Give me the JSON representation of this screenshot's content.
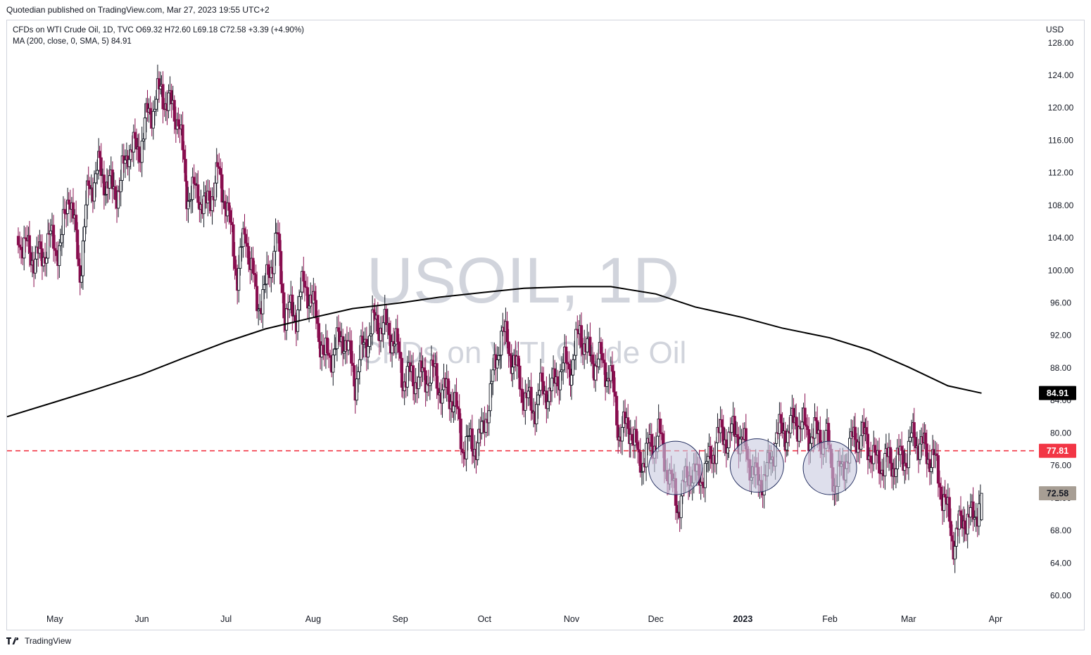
{
  "header": {
    "publisher": "Quotedian published on TradingView.com, Mar 27, 2023 19:55 UTC+2"
  },
  "legend": {
    "line1": "CFDs on WTI Crude Oil, 1D, TVC  O69.32  H72.60  L69.18  C72.58  +3.39 (+4.90%)",
    "line2": "MA (200, close, 0, SMA, 5)  84.91"
  },
  "currency": "USD",
  "watermark": {
    "symbol": "USOIL, 1D",
    "name": "CFDs on WTI Crude Oil"
  },
  "footer": {
    "brand": "TradingView",
    "logo_icon": "tradingview-logo-icon"
  },
  "colors": {
    "up": "#131722",
    "down": "#880e4f",
    "ma": "#000000",
    "support": "#f23645",
    "circle_fill": "#c8cadf",
    "circle_stroke": "#1f2a5c",
    "last_price_bg": "#a79e94"
  },
  "chart_data": {
    "type": "candlestick",
    "y_axis": {
      "min": 58,
      "max": 130,
      "ticks": [
        128,
        124,
        120,
        116,
        112,
        108,
        104,
        100,
        96,
        92,
        88,
        84,
        80,
        76,
        72,
        68,
        64,
        60
      ],
      "tick_labels": [
        "128.00",
        "124.00",
        "120.00",
        "116.00",
        "112.00",
        "108.00",
        "104.00",
        "100.00",
        "96.00",
        "92.00",
        "88.00",
        "84.00",
        "80.00",
        "76.00",
        "72.00",
        "68.00",
        "64.00",
        "60.00"
      ]
    },
    "x_axis": {
      "labels": [
        {
          "text": "May",
          "date": "2022-05-01",
          "bold": false
        },
        {
          "text": "Jun",
          "date": "2022-06-01",
          "bold": false
        },
        {
          "text": "Jul",
          "date": "2022-07-01",
          "bold": false
        },
        {
          "text": "Aug",
          "date": "2022-08-01",
          "bold": false
        },
        {
          "text": "Sep",
          "date": "2022-09-01",
          "bold": false
        },
        {
          "text": "Oct",
          "date": "2022-10-01",
          "bold": false
        },
        {
          "text": "Nov",
          "date": "2022-11-01",
          "bold": false
        },
        {
          "text": "Dec",
          "date": "2022-12-01",
          "bold": false
        },
        {
          "text": "2023",
          "date": "2023-01-01",
          "bold": true
        },
        {
          "text": "Feb",
          "date": "2023-02-01",
          "bold": false
        },
        {
          "text": "Mar",
          "date": "2023-03-01",
          "bold": false
        },
        {
          "text": "Apr",
          "date": "2023-04-01",
          "bold": false
        }
      ]
    },
    "closes": [
      {
        "d": "2022-04-18",
        "c": 104.2
      },
      {
        "d": "2022-04-22",
        "c": 102.1
      },
      {
        "d": "2022-04-26",
        "c": 101.3
      },
      {
        "d": "2022-04-29",
        "c": 103.8
      },
      {
        "d": "2022-05-03",
        "c": 102.5
      },
      {
        "d": "2022-05-06",
        "c": 110.2
      },
      {
        "d": "2022-05-10",
        "c": 99.8
      },
      {
        "d": "2022-05-13",
        "c": 110.1
      },
      {
        "d": "2022-05-17",
        "c": 112.4
      },
      {
        "d": "2022-05-20",
        "c": 110.3
      },
      {
        "d": "2022-05-24",
        "c": 109.8
      },
      {
        "d": "2022-05-27",
        "c": 115.0
      },
      {
        "d": "2022-05-31",
        "c": 114.7
      },
      {
        "d": "2022-06-03",
        "c": 118.9
      },
      {
        "d": "2022-06-08",
        "c": 122.1
      },
      {
        "d": "2022-06-10",
        "c": 120.7
      },
      {
        "d": "2022-06-14",
        "c": 118.9
      },
      {
        "d": "2022-06-17",
        "c": 109.6
      },
      {
        "d": "2022-06-21",
        "c": 109.5
      },
      {
        "d": "2022-06-24",
        "c": 107.6
      },
      {
        "d": "2022-06-28",
        "c": 111.8
      },
      {
        "d": "2022-07-01",
        "c": 108.4
      },
      {
        "d": "2022-07-05",
        "c": 99.5
      },
      {
        "d": "2022-07-08",
        "c": 104.8
      },
      {
        "d": "2022-07-12",
        "c": 95.8
      },
      {
        "d": "2022-07-15",
        "c": 97.6
      },
      {
        "d": "2022-07-19",
        "c": 104.2
      },
      {
        "d": "2022-07-22",
        "c": 94.7
      },
      {
        "d": "2022-07-26",
        "c": 94.9
      },
      {
        "d": "2022-07-29",
        "c": 98.6
      },
      {
        "d": "2022-08-02",
        "c": 94.4
      },
      {
        "d": "2022-08-05",
        "c": 89.0
      },
      {
        "d": "2022-08-09",
        "c": 90.5
      },
      {
        "d": "2022-08-12",
        "c": 92.1
      },
      {
        "d": "2022-08-16",
        "c": 86.5
      },
      {
        "d": "2022-08-19",
        "c": 90.8
      },
      {
        "d": "2022-08-23",
        "c": 93.7
      },
      {
        "d": "2022-08-26",
        "c": 93.1
      },
      {
        "d": "2022-08-30",
        "c": 91.6
      },
      {
        "d": "2022-09-02",
        "c": 86.9
      },
      {
        "d": "2022-09-06",
        "c": 86.9
      },
      {
        "d": "2022-09-09",
        "c": 86.8
      },
      {
        "d": "2022-09-13",
        "c": 87.3
      },
      {
        "d": "2022-09-16",
        "c": 85.1
      },
      {
        "d": "2022-09-20",
        "c": 84.4
      },
      {
        "d": "2022-09-23",
        "c": 78.7
      },
      {
        "d": "2022-09-27",
        "c": 78.5
      },
      {
        "d": "2022-09-30",
        "c": 79.5
      },
      {
        "d": "2022-10-04",
        "c": 86.5
      },
      {
        "d": "2022-10-07",
        "c": 92.6
      },
      {
        "d": "2022-10-11",
        "c": 89.4
      },
      {
        "d": "2022-10-14",
        "c": 85.6
      },
      {
        "d": "2022-10-18",
        "c": 82.8
      },
      {
        "d": "2022-10-21",
        "c": 85.1
      },
      {
        "d": "2022-10-25",
        "c": 85.3
      },
      {
        "d": "2022-10-28",
        "c": 87.9
      },
      {
        "d": "2022-11-01",
        "c": 88.4
      },
      {
        "d": "2022-11-04",
        "c": 92.6
      },
      {
        "d": "2022-11-08",
        "c": 88.9
      },
      {
        "d": "2022-11-11",
        "c": 88.9
      },
      {
        "d": "2022-11-15",
        "c": 86.9
      },
      {
        "d": "2022-11-18",
        "c": 80.1
      },
      {
        "d": "2022-11-22",
        "c": 80.9
      },
      {
        "d": "2022-11-25",
        "c": 76.3
      },
      {
        "d": "2022-11-29",
        "c": 78.2
      },
      {
        "d": "2022-12-02",
        "c": 79.9
      },
      {
        "d": "2022-12-06",
        "c": 74.3
      },
      {
        "d": "2022-12-09",
        "c": 71.0
      },
      {
        "d": "2022-12-13",
        "c": 75.4
      },
      {
        "d": "2022-12-16",
        "c": 74.3
      },
      {
        "d": "2022-12-20",
        "c": 76.1
      },
      {
        "d": "2022-12-23",
        "c": 79.6
      },
      {
        "d": "2022-12-27",
        "c": 79.5
      },
      {
        "d": "2022-12-30",
        "c": 80.3
      },
      {
        "d": "2023-01-03",
        "c": 76.9
      },
      {
        "d": "2023-01-06",
        "c": 73.8
      },
      {
        "d": "2023-01-10",
        "c": 75.1
      },
      {
        "d": "2023-01-13",
        "c": 79.9
      },
      {
        "d": "2023-01-17",
        "c": 80.2
      },
      {
        "d": "2023-01-20",
        "c": 81.6
      },
      {
        "d": "2023-01-24",
        "c": 80.1
      },
      {
        "d": "2023-01-27",
        "c": 79.7
      },
      {
        "d": "2023-01-31",
        "c": 78.9
      },
      {
        "d": "2023-02-03",
        "c": 73.4
      },
      {
        "d": "2023-02-07",
        "c": 77.1
      },
      {
        "d": "2023-02-10",
        "c": 79.7
      },
      {
        "d": "2023-02-14",
        "c": 79.1
      },
      {
        "d": "2023-02-17",
        "c": 76.3
      },
      {
        "d": "2023-02-21",
        "c": 76.4
      },
      {
        "d": "2023-02-24",
        "c": 76.3
      },
      {
        "d": "2023-02-28",
        "c": 77.1
      },
      {
        "d": "2023-03-03",
        "c": 79.7
      },
      {
        "d": "2023-03-07",
        "c": 77.6
      },
      {
        "d": "2023-03-10",
        "c": 76.7
      },
      {
        "d": "2023-03-14",
        "c": 71.3
      },
      {
        "d": "2023-03-17",
        "c": 66.7
      },
      {
        "d": "2023-03-21",
        "c": 69.7
      },
      {
        "d": "2023-03-24",
        "c": 69.3
      },
      {
        "d": "2023-03-27",
        "c": 72.58
      }
    ],
    "moving_average": {
      "label": "MA (200, close, 0, SMA, 5)",
      "last": 84.91,
      "points": [
        {
          "d": "2022-04-14",
          "v": 82.0
        },
        {
          "d": "2022-05-01",
          "v": 83.8
        },
        {
          "d": "2022-05-15",
          "v": 85.3
        },
        {
          "d": "2022-06-01",
          "v": 87.2
        },
        {
          "d": "2022-06-15",
          "v": 89.1
        },
        {
          "d": "2022-07-01",
          "v": 91.2
        },
        {
          "d": "2022-07-15",
          "v": 92.8
        },
        {
          "d": "2022-08-01",
          "v": 94.2
        },
        {
          "d": "2022-08-15",
          "v": 95.3
        },
        {
          "d": "2022-09-01",
          "v": 96.0
        },
        {
          "d": "2022-09-15",
          "v": 96.7
        },
        {
          "d": "2022-10-01",
          "v": 97.3
        },
        {
          "d": "2022-10-15",
          "v": 97.8
        },
        {
          "d": "2022-11-01",
          "v": 98.0
        },
        {
          "d": "2022-11-15",
          "v": 98.0
        },
        {
          "d": "2022-12-01",
          "v": 97.1
        },
        {
          "d": "2022-12-15",
          "v": 95.5
        },
        {
          "d": "2023-01-01",
          "v": 94.2
        },
        {
          "d": "2023-01-15",
          "v": 92.9
        },
        {
          "d": "2023-02-01",
          "v": 91.7
        },
        {
          "d": "2023-02-15",
          "v": 90.2
        },
        {
          "d": "2023-03-01",
          "v": 88.1
        },
        {
          "d": "2023-03-15",
          "v": 85.8
        },
        {
          "d": "2023-03-27",
          "v": 84.9
        }
      ]
    },
    "support_line": {
      "value": 77.81,
      "label": "77.81",
      "style": "dashed"
    },
    "price_labels": [
      {
        "text": "84.91",
        "value": 84.91,
        "kind": "ma"
      },
      {
        "text": "77.81",
        "value": 77.81,
        "kind": "support"
      },
      {
        "text": "72.58",
        "value": 72.58,
        "kind": "last"
      }
    ],
    "annotations": [
      {
        "shape": "circle",
        "center_date": "2022-12-08",
        "center_value": 75.7
      },
      {
        "shape": "circle",
        "center_date": "2023-01-06",
        "center_value": 76.0
      },
      {
        "shape": "circle",
        "center_date": "2023-02-01",
        "center_value": 75.7
      }
    ]
  }
}
